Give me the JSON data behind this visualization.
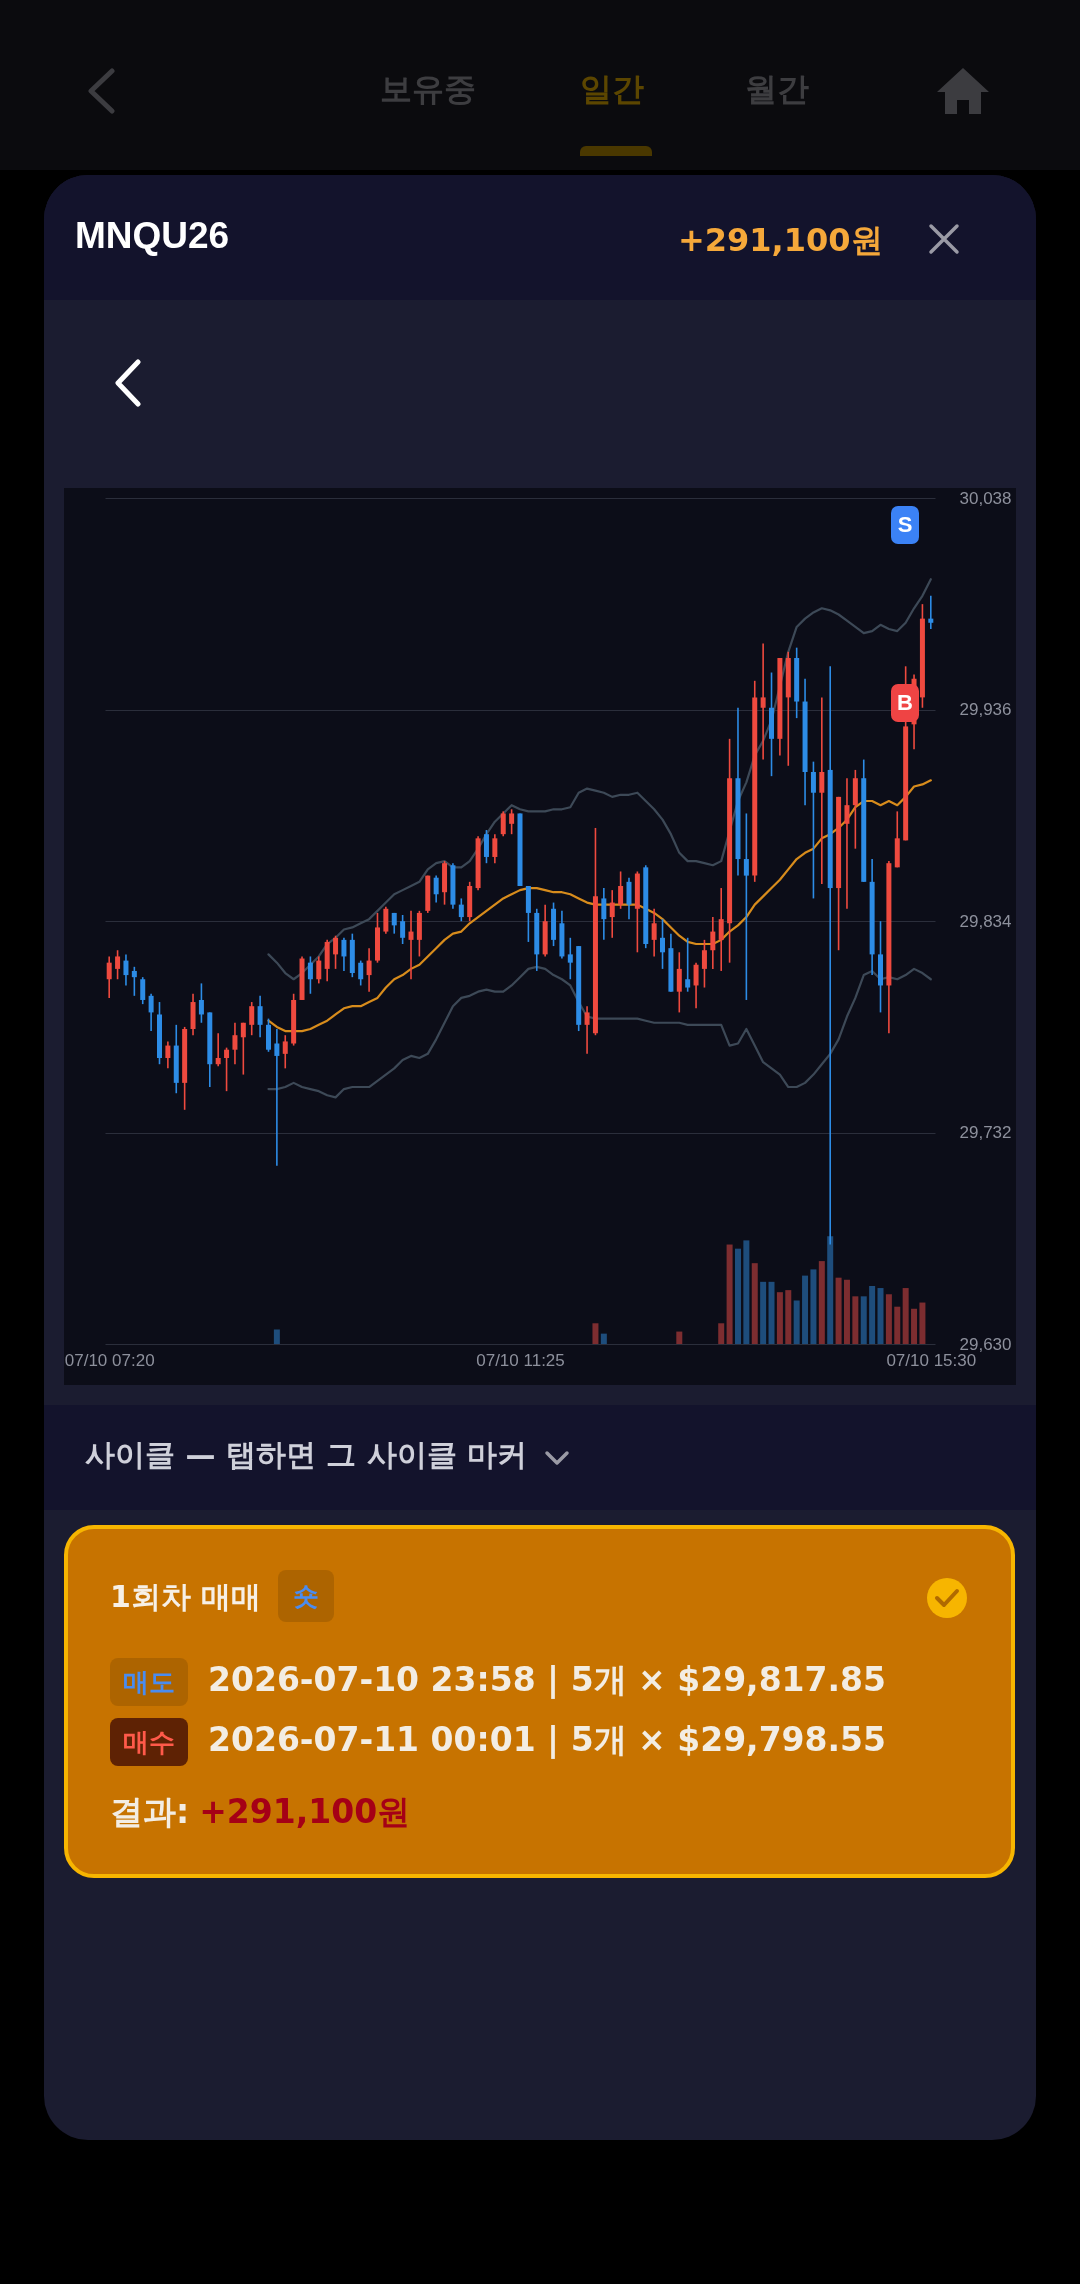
{
  "chart_data": [
    {
      "type": "other",
      "annotations": [
        "보유중",
        "일간",
        "월간"
      ]
    },
    {
      "type": "candlestick",
      "title": "MNQU26",
      "subtitle": "+291,100원",
      "categories": [
        "07/10 07:20",
        null,
        null,
        null,
        null,
        null,
        null,
        null,
        null,
        null,
        null,
        null,
        null,
        null,
        null,
        null,
        null,
        null,
        null,
        null,
        null,
        null,
        null,
        null,
        null,
        null,
        null,
        null,
        null,
        null,
        null,
        null,
        null,
        null,
        null,
        null,
        null,
        null,
        null,
        null,
        null,
        null,
        null,
        null,
        null,
        null,
        null,
        null,
        null,
        "07/10 11:25",
        null,
        null,
        null,
        null,
        null,
        null,
        null,
        null,
        null,
        null,
        null,
        null,
        null,
        null,
        null,
        null,
        null,
        null,
        null,
        null,
        null,
        null,
        null,
        null,
        null,
        null,
        null,
        null,
        null,
        null,
        null,
        null,
        null,
        null,
        null,
        null,
        null,
        null,
        null,
        null,
        null,
        null,
        null,
        null,
        null,
        null,
        null,
        null,
        "07/10 15:30"
      ],
      "ohlc": [
        [
          29806,
          29817,
          29797,
          29814
        ],
        [
          29811,
          29820,
          29806,
          29817
        ],
        [
          29815,
          29818,
          29803,
          29808
        ],
        [
          29810,
          29812,
          29798,
          29807
        ],
        [
          29806,
          29807,
          29794,
          29796
        ],
        [
          29798,
          29799,
          29781,
          29790
        ],
        [
          29789,
          29795,
          29765,
          29768
        ],
        [
          29768,
          29776,
          29763,
          29774
        ],
        [
          29774,
          29784,
          29751,
          29756
        ],
        [
          29756,
          29783,
          29743,
          29782
        ],
        [
          29782,
          29799,
          29779,
          29795
        ],
        [
          29796,
          29804,
          29785,
          29789
        ],
        [
          29790,
          29790,
          29754,
          29765
        ],
        [
          29765,
          29780,
          29764,
          29768
        ],
        [
          29768,
          29773,
          29752,
          29772
        ],
        [
          29772,
          29785,
          29765,
          29779
        ],
        [
          29778,
          29785,
          29760,
          29785
        ],
        [
          29784,
          29795,
          29779,
          29793
        ],
        [
          29793,
          29798,
          29778,
          29784
        ],
        [
          29784,
          29787,
          29771,
          29772
        ],
        [
          29775,
          29782,
          29716,
          29769
        ],
        [
          29770,
          29779,
          29763,
          29776
        ],
        [
          29775,
          29799,
          29774,
          29796
        ],
        [
          29796,
          29817,
          29796,
          29816
        ],
        [
          29814,
          29817,
          29799,
          29806
        ],
        [
          29806,
          29817,
          29804,
          29815
        ],
        [
          29811,
          29825,
          29805,
          29824
        ],
        [
          29818,
          29827,
          29811,
          29826
        ],
        [
          29825,
          29826,
          29810,
          29817
        ],
        [
          29825,
          29828,
          29807,
          29809
        ],
        [
          29814,
          29815,
          29803,
          29806
        ],
        [
          29808,
          29821,
          29800,
          29815
        ],
        [
          29815,
          29838,
          29814,
          29831
        ],
        [
          29829,
          29841,
          29828,
          29840
        ],
        [
          29838,
          29838,
          29828,
          29832
        ],
        [
          29834,
          29837,
          29823,
          29826
        ],
        [
          29825,
          29839,
          29806,
          29829
        ],
        [
          29825,
          29839,
          29817,
          29838
        ],
        [
          29839,
          29856,
          29838,
          29856
        ],
        [
          29855,
          29856,
          29843,
          29847
        ],
        [
          29848,
          29863,
          29842,
          29862
        ],
        [
          29861,
          29862,
          29840,
          29842
        ],
        [
          29842,
          29845,
          29834,
          29836
        ],
        [
          29836,
          29853,
          29834,
          29851
        ],
        [
          29850,
          29875,
          29849,
          29874
        ],
        [
          29876,
          29878,
          29862,
          29865
        ],
        [
          29865,
          29876,
          29862,
          29874
        ],
        [
          29876,
          29887,
          29875,
          29886
        ],
        [
          29881,
          29888,
          29876,
          29886
        ],
        [
          29886,
          29886,
          29851,
          29851
        ],
        [
          29851,
          29851,
          29824,
          29838
        ],
        [
          29838,
          29840,
          29810,
          29818
        ],
        [
          29818,
          29842,
          29817,
          29834
        ],
        [
          29840,
          29843,
          29822,
          29825
        ],
        [
          29833,
          29839,
          29816,
          29817
        ],
        [
          29818,
          29826,
          29806,
          29814
        ],
        [
          29822,
          29822,
          29781,
          29784
        ],
        [
          29784,
          29793,
          29770,
          29790
        ],
        [
          29780,
          29879,
          29779,
          29846
        ],
        [
          29845,
          29850,
          29825,
          29835
        ],
        [
          29836,
          29849,
          29826,
          29843
        ],
        [
          29842,
          29858,
          29840,
          29851
        ],
        [
          29853,
          29855,
          29835,
          29842
        ],
        [
          29840,
          29858,
          29819,
          29857
        ],
        [
          29860,
          29861,
          29821,
          29823
        ],
        [
          29825,
          29840,
          29817,
          29833
        ],
        [
          29826,
          29835,
          29811,
          29819
        ],
        [
          29821,
          29828,
          29800,
          29800
        ],
        [
          29800,
          29819,
          29790,
          29811
        ],
        [
          29806,
          29826,
          29800,
          29802
        ],
        [
          29803,
          29814,
          29792,
          29813
        ],
        [
          29811,
          29825,
          29802,
          29820
        ],
        [
          29820,
          29836,
          29811,
          29829
        ],
        [
          29825,
          29850,
          29810,
          29835
        ],
        [
          29833,
          29922,
          29814,
          29903
        ],
        [
          29903,
          29937,
          29856,
          29864
        ],
        [
          29864,
          29886,
          29796,
          29856
        ],
        [
          29856,
          29950,
          29853,
          29942
        ],
        [
          29937,
          29968,
          29912,
          29942
        ],
        [
          29937,
          29954,
          29904,
          29922
        ],
        [
          29922,
          29961,
          29914,
          29961
        ],
        [
          29942,
          29964,
          29909,
          29961
        ],
        [
          29961,
          29966,
          29932,
          29940
        ],
        [
          29940,
          29951,
          29890,
          29906
        ],
        [
          29906,
          29911,
          29845,
          29896
        ],
        [
          29896,
          29942,
          29852,
          29906
        ],
        [
          29907,
          29957,
          29678,
          29850
        ],
        [
          29850,
          29894,
          29820,
          29894
        ],
        [
          29881,
          29903,
          29840,
          29890
        ],
        [
          29890,
          29907,
          29869,
          29903
        ],
        [
          29903,
          29912,
          29853,
          29853
        ],
        [
          29853,
          29864,
          29808,
          29818
        ],
        [
          29818,
          29834,
          29790,
          29803
        ],
        [
          29803,
          29863,
          29780,
          29862
        ],
        [
          29860,
          29887,
          29860,
          29874
        ],
        [
          29873,
          29957,
          29873,
          29928
        ],
        [
          29929,
          29953,
          29917,
          29951
        ],
        [
          29942,
          29987,
          29937,
          29980
        ],
        [
          29980,
          29991,
          29975,
          29978
        ]
      ],
      "colors": [
        "#ef4a3f",
        "#ef4a3f",
        "#2d8ce6",
        "#2d8ce6",
        "#2d8ce6",
        "#2d8ce6",
        "#2d8ce6",
        "#ef4a3f",
        "#2d8ce6",
        "#ef4a3f",
        "#ef4a3f",
        "#2d8ce6",
        "#2d8ce6",
        "#ef4a3f",
        "#ef4a3f",
        "#ef4a3f",
        "#ef4a3f",
        "#ef4a3f",
        "#2d8ce6",
        "#2d8ce6",
        "#2d8ce6",
        "#ef4a3f",
        "#ef4a3f",
        "#ef4a3f",
        "#2d8ce6",
        "#ef4a3f",
        "#ef4a3f",
        "#ef4a3f",
        "#2d8ce6",
        "#2d8ce6",
        "#2d8ce6",
        "#ef4a3f",
        "#ef4a3f",
        "#ef4a3f",
        "#2d8ce6",
        "#2d8ce6",
        "#ef4a3f",
        "#ef4a3f",
        "#ef4a3f",
        "#2d8ce6",
        "#ef4a3f",
        "#2d8ce6",
        "#2d8ce6",
        "#ef4a3f",
        "#ef4a3f",
        "#2d8ce6",
        "#ef4a3f",
        "#ef4a3f",
        "#ef4a3f",
        "#2d8ce6",
        "#2d8ce6",
        "#2d8ce6",
        "#ef4a3f",
        "#2d8ce6",
        "#2d8ce6",
        "#2d8ce6",
        "#2d8ce6",
        "#ef4a3f",
        "#ef4a3f",
        "#2d8ce6",
        "#ef4a3f",
        "#ef4a3f",
        "#2d8ce6",
        "#ef4a3f",
        "#2d8ce6",
        "#ef4a3f",
        "#2d8ce6",
        "#2d8ce6",
        "#ef4a3f",
        "#2d8ce6",
        "#ef4a3f",
        "#ef4a3f",
        "#ef4a3f",
        "#ef4a3f",
        "#ef4a3f",
        "#2d8ce6",
        "#2d8ce6",
        "#ef4a3f",
        "#ef4a3f",
        "#2d8ce6",
        "#ef4a3f",
        "#ef4a3f",
        "#2d8ce6",
        "#2d8ce6",
        "#2d8ce6",
        "#ef4a3f",
        "#2d8ce6",
        "#ef4a3f",
        "#ef4a3f",
        "#ef4a3f",
        "#2d8ce6",
        "#2d8ce6",
        "#2d8ce6",
        "#ef4a3f",
        "#ef4a3f",
        "#ef4a3f",
        "#ef4a3f",
        "#ef4a3f",
        "#2d8ce6"
      ],
      "series": [
        {
          "type": "bar",
          "color": "#7d2d30",
          "values": [
            null,
            null,
            null,
            null,
            null,
            null,
            null,
            null,
            null,
            null,
            null,
            null,
            null,
            null,
            null,
            null,
            null,
            null,
            null,
            null,
            null,
            null,
            null,
            null,
            null,
            null,
            null,
            null,
            null,
            null,
            null,
            null,
            null,
            null,
            null,
            null,
            null,
            null,
            null,
            null,
            null,
            null,
            null,
            null,
            null,
            null,
            null,
            null,
            null,
            null,
            null,
            null,
            null,
            null,
            null,
            null,
            null,
            null,
            29640,
            null,
            null,
            null,
            null,
            null,
            null,
            null,
            null,
            null,
            29636,
            null,
            null,
            null,
            null,
            29640,
            29678,
            null,
            null,
            29669,
            null,
            null,
            29655,
            29656,
            null,
            null,
            null,
            29670,
            null,
            29662,
            29661,
            29653,
            null,
            null,
            null,
            29654,
            29648,
            29657,
            29647,
            29650,
            null
          ]
        },
        {
          "type": "bar",
          "color": "#1e4d7c",
          "values": [
            null,
            null,
            null,
            null,
            null,
            null,
            null,
            null,
            null,
            null,
            null,
            null,
            null,
            null,
            null,
            null,
            null,
            null,
            null,
            null,
            29637,
            null,
            null,
            null,
            null,
            null,
            null,
            null,
            null,
            null,
            null,
            null,
            null,
            null,
            null,
            null,
            null,
            null,
            null,
            null,
            null,
            null,
            null,
            null,
            null,
            null,
            null,
            null,
            null,
            null,
            null,
            null,
            null,
            null,
            null,
            null,
            null,
            null,
            null,
            29635,
            null,
            null,
            null,
            null,
            null,
            null,
            null,
            null,
            null,
            null,
            null,
            null,
            null,
            null,
            null,
            29676,
            29680,
            null,
            29660,
            29660,
            null,
            null,
            29651,
            29663,
            29666,
            null,
            29682,
            null,
            null,
            null,
            29653,
            29658,
            29657,
            null,
            null,
            null,
            null,
            null,
            null
          ]
        },
        {
          "type": "line",
          "color": "#3d4957",
          "values": [
            null,
            null,
            null,
            null,
            null,
            null,
            null,
            null,
            null,
            null,
            null,
            null,
            null,
            null,
            null,
            null,
            null,
            null,
            null,
            29818,
            29814,
            29809,
            29806,
            29809,
            29813,
            29817,
            29823,
            29826,
            29830,
            29831,
            29833,
            29835,
            29839,
            29843,
            29847,
            29849,
            29851,
            29853,
            29859,
            29862,
            29863,
            29860,
            29860,
            29863,
            29869,
            29876,
            29882,
            29886,
            29890,
            29888,
            29887,
            29887,
            29887,
            29888,
            29888,
            29889,
            29896,
            29898,
            29897,
            29896,
            29894,
            29895,
            29895,
            29896,
            29892,
            29888,
            29883,
            29876,
            29867,
            29863,
            29863,
            29862,
            29861,
            29863,
            null,
            29892,
            29901,
            29914,
            29921,
            29931,
            null,
            29964,
            29976,
            29980,
            29983,
            29985,
            29984,
            29982,
            29979,
            29976,
            29973,
            29974,
            29977,
            29975,
            29974,
            29978,
            29985,
            29991,
            29999
          ]
        },
        {
          "type": "line",
          "color": "#3d4957",
          "values": [
            null,
            null,
            null,
            null,
            null,
            null,
            null,
            null,
            null,
            null,
            null,
            null,
            null,
            null,
            null,
            null,
            null,
            null,
            null,
            29753,
            29753,
            29754,
            29756,
            29754,
            29753,
            29752,
            29750,
            29749,
            29753,
            29754,
            29754,
            29754,
            29757,
            29760,
            29763,
            29767,
            29769,
            29768,
            29770,
            29777,
            29785,
            29793,
            29797,
            29798,
            29800,
            29801,
            29800,
            29800,
            29803,
            29807,
            29811,
            29812,
            29811,
            29808,
            29806,
            29803,
            29795,
            29788,
            29787,
            29787,
            29787,
            29787,
            29787,
            29787,
            29786,
            29785,
            29785,
            29785,
            29785,
            29784,
            29784,
            29784,
            29784,
            29784,
            29774,
            29775,
            29782,
            29774,
            29766,
            29763,
            29760,
            29754,
            29754,
            29756,
            29760,
            29765,
            29770,
            29777,
            29788,
            29797,
            29808,
            29810,
            29806,
            29807,
            29806,
            29808,
            29811,
            29809,
            29806
          ]
        },
        {
          "type": "line",
          "color": "#d88c1c",
          "values": [
            null,
            null,
            null,
            null,
            null,
            null,
            null,
            null,
            null,
            null,
            null,
            null,
            null,
            null,
            null,
            null,
            null,
            null,
            null,
            29786,
            29783,
            29781,
            29781,
            29781,
            29782,
            29784,
            29786,
            29789,
            29792,
            29793,
            29793,
            29795,
            29797,
            29802,
            29806,
            29808,
            29811,
            29813,
            29817,
            29821,
            29825,
            29828,
            29829,
            29833,
            29836,
            29839,
            29842,
            29845,
            29847,
            29849,
            29850,
            29850,
            29849,
            29848,
            29848,
            29847,
            29845,
            29843,
            29842,
            29842,
            29842,
            29842,
            29842,
            29842,
            29840,
            29838,
            29835,
            29831,
            29827,
            29824,
            29823,
            29823,
            29823,
            29825,
            29829,
            29832,
            29836,
            29842,
            29846,
            29850,
            29854,
            29859,
            29864,
            29867,
            29869,
            29874,
            29876,
            29879,
            29883,
            29889,
            29892,
            29892,
            29890,
            29892,
            29890,
            29894,
            29899,
            29900,
            29902
          ]
        }
      ],
      "ylim": [
        29630,
        30044
      ],
      "yticks": [
        {
          "value": 29630,
          "label": "29,630"
        },
        {
          "value": 29732,
          "label": "29,732"
        },
        {
          "value": 29834,
          "label": "29,834"
        },
        {
          "value": 29936,
          "label": "29,936"
        },
        {
          "value": 30038,
          "label": "30,038"
        }
      ],
      "grid": "y",
      "annotations": [
        "S",
        "B"
      ]
    },
    {
      "type": "other",
      "annotations": [
        "사이클 — 탭하면 그 사이클 마커",
        "1회차 매매",
        "숏",
        "매도",
        "2026-07-10 23:58 | 5개 × $29,817.85",
        "매수",
        "2026-07-11 00:01 | 5개 × $29,798.55",
        "결과:",
        "+291,100원"
      ]
    }
  ]
}
